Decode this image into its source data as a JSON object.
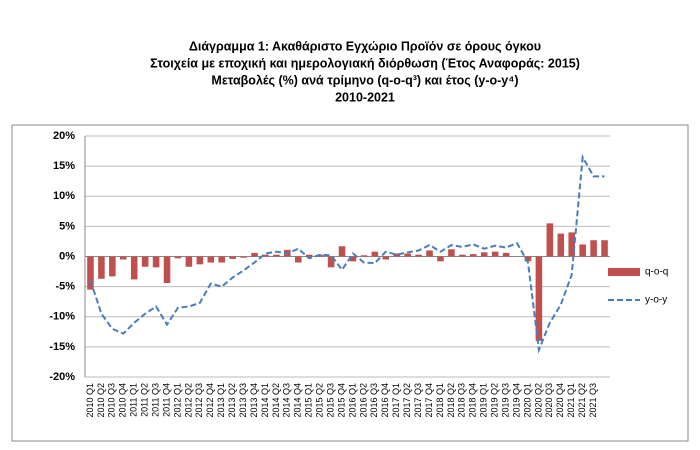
{
  "chart_data": {
    "type": "bar_line",
    "title_lines": [
      "Διάγραμμα 1: Ακαθάριστο Εγχώριο Προϊόν σε όρους όγκου",
      "Στοιχεία με εποχική και ημερολογιακή διόρθωση (Έτος Αναφοράς: 2015)",
      "Μεταβολές (%) ανά τρίμηνο (q-o-q³) και έτος (y-o-y⁴)",
      "2010-2021"
    ],
    "categories": [
      "2010 Q1",
      "2010 Q2",
      "2010 Q3",
      "2010 Q4",
      "2011 Q1",
      "2011 Q2",
      "2011 Q3",
      "2011 Q4",
      "2012 Q1",
      "2012 Q2",
      "2012 Q3",
      "2012 Q4",
      "2013 Q1",
      "2013 Q2",
      "2013 Q3",
      "2013 Q4",
      "2014 Q1",
      "2014 Q2",
      "2014 Q3",
      "2014 Q4",
      "2015 Q1",
      "2015 Q2",
      "2015 Q3",
      "2015 Q4",
      "2016 Q1",
      "2016 Q2",
      "2016 Q3",
      "2016 Q4",
      "2017 Q1",
      "2017 Q2",
      "2017 Q3",
      "2017 Q4",
      "2018 Q1",
      "2018 Q2",
      "2018 Q3",
      "2018 Q4",
      "2019 Q1",
      "2019 Q2",
      "2019 Q3",
      "2019 Q4",
      "2020 Q1",
      "2020 Q2",
      "2020 Q3",
      "2020 Q4",
      "2021 Q1",
      "2021 Q2",
      "2021 Q3",
      null
    ],
    "series": [
      {
        "name": "q-o-q",
        "kind": "bar",
        "color": "#c0504d",
        "values": [
          -5.5,
          -3.7,
          -3.3,
          -0.5,
          -3.8,
          -1.7,
          -1.8,
          -4.4,
          -0.3,
          -1.7,
          -1.3,
          -1.0,
          -1.0,
          -0.4,
          -0.2,
          0.6,
          0.3,
          0.3,
          1.1,
          -1.0,
          0.3,
          0.3,
          -1.8,
          1.7,
          -0.8,
          0.2,
          0.8,
          -0.5,
          0.5,
          0.5,
          0.3,
          1.0,
          -0.8,
          1.2,
          0.3,
          0.4,
          0.7,
          0.8,
          0.6,
          0.0,
          -0.8,
          -14.0,
          5.5,
          3.8,
          4.0,
          2.0,
          2.7,
          2.7
        ]
      },
      {
        "name": "y-o-y",
        "kind": "line",
        "color": "#4a7ebb",
        "values": [
          -4.0,
          -9.5,
          -12.0,
          -12.8,
          -11.0,
          -9.5,
          -8.3,
          -11.3,
          -8.5,
          -8.3,
          -7.7,
          -4.5,
          -5.0,
          -3.5,
          -2.3,
          -1.0,
          0.5,
          0.8,
          0.5,
          1.3,
          -0.3,
          0.3,
          0.2,
          -2.2,
          0.5,
          -1.0,
          -1.1,
          0.8,
          0.3,
          0.7,
          1.0,
          1.9,
          0.8,
          1.9,
          1.6,
          2.0,
          1.3,
          1.8,
          1.5,
          2.2,
          -1.0,
          -15.5,
          -11.0,
          -8.0,
          -3.0,
          16.5,
          13.3,
          13.3
        ]
      }
    ],
    "ylim": [
      -20,
      20
    ],
    "yticks": [
      {
        "value": -20,
        "label": "-20%"
      },
      {
        "value": -15,
        "label": "-15%"
      },
      {
        "value": -10,
        "label": "-10%"
      },
      {
        "value": -5,
        "label": "-5%"
      },
      {
        "value": 0,
        "label": "0%"
      },
      {
        "value": 5,
        "label": "5%"
      },
      {
        "value": 10,
        "label": "10%"
      },
      {
        "value": 15,
        "label": "15%"
      },
      {
        "value": 20,
        "label": "20%"
      }
    ],
    "grid": true,
    "legend": "right"
  }
}
